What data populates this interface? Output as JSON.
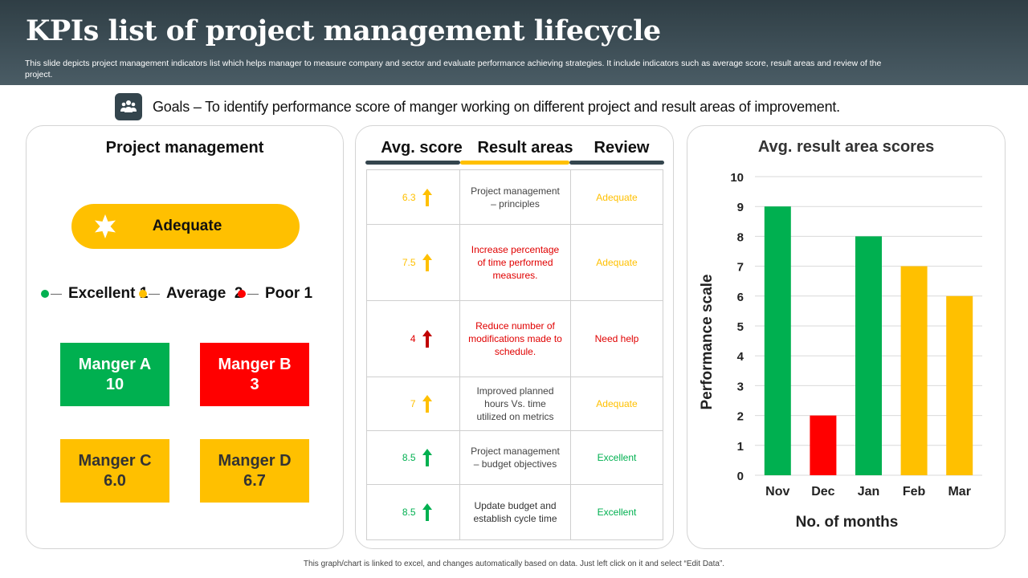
{
  "header": {
    "title": "KPIs list of project management lifecycle",
    "description": "This slide depicts project management indicators list which helps manager to measure company and sector and evaluate performance achieving strategies. It include indicators such as average score, result areas and review of the project."
  },
  "goals": {
    "icon": "people-icon",
    "text": "Goals – To identify performance score of manger working on different project and result areas of improvement."
  },
  "project_panel": {
    "title": "Project management",
    "status": {
      "label": "Adequate",
      "icon": "star-icon",
      "color": "#ffc000"
    },
    "legend": [
      {
        "label": "Excellent 1",
        "color": "#00b050"
      },
      {
        "label": "Average  2",
        "color": "#ffc000"
      },
      {
        "label": "Poor 1",
        "color": "#ff0000"
      }
    ],
    "managers": [
      {
        "name": "Manger A",
        "score": "10",
        "color": "#00b050",
        "text_color": "#ffffff"
      },
      {
        "name": "Manger B",
        "score": "3",
        "color": "#ff0000",
        "text_color": "#ffffff"
      },
      {
        "name": "Manger C",
        "score": "6.0",
        "color": "#ffc000",
        "text_color": "#333333"
      },
      {
        "name": "Manger D",
        "score": "6.7",
        "color": "#ffc000",
        "text_color": "#333333"
      }
    ]
  },
  "kpi_table": {
    "headers": [
      {
        "label": "Avg. score",
        "bar_color": "#34454d"
      },
      {
        "label": "Result areas",
        "bar_color": "#ffc000"
      },
      {
        "label": "Review",
        "bar_color": "#34454d"
      }
    ],
    "rows": [
      {
        "score": "6.3",
        "arrow_color": "#ffc000",
        "area": "Project management – principles",
        "area_color": "#444444",
        "review": "Adequate",
        "color": "#ffc000"
      },
      {
        "score": "7.5",
        "arrow_color": "#ffc000",
        "area": "Increase percentage of time performed measures.",
        "area_color": "#e00000",
        "review": "Adequate",
        "color": "#ffc000"
      },
      {
        "score": "4",
        "arrow_color": "#c00000",
        "area": "Reduce number of modifications made to schedule.",
        "area_color": "#e00000",
        "review": "Need help",
        "color": "#e00000"
      },
      {
        "score": "7",
        "arrow_color": "#ffc000",
        "area": "Improved planned hours Vs. time utilized on metrics",
        "area_color": "#444444",
        "review": "Adequate",
        "color": "#ffc000"
      },
      {
        "score": "8.5",
        "arrow_color": "#00b050",
        "area": "Project management – budget objectives",
        "area_color": "#444444",
        "review": "Excellent",
        "color": "#00b050"
      },
      {
        "score": "8.5",
        "arrow_color": "#00b050",
        "area": "Update budget and establish cycle time",
        "area_color": "#333333",
        "review": "Excellent",
        "color": "#00b050"
      }
    ]
  },
  "chart_data": {
    "type": "bar",
    "title": "Avg. result area scores",
    "xlabel": "No. of months",
    "ylabel": "Performance scale",
    "categories": [
      "Nov",
      "Dec",
      "Jan",
      "Feb",
      "Mar"
    ],
    "values": [
      9,
      2,
      8,
      7,
      6
    ],
    "colors": [
      "#00b050",
      "#ff0000",
      "#00b050",
      "#ffc000",
      "#ffc000"
    ],
    "ylim": [
      0,
      10
    ],
    "yticks": [
      0,
      1,
      2,
      3,
      4,
      5,
      6,
      7,
      8,
      9,
      10
    ],
    "grid": true
  },
  "footnote": "This graph/chart is linked to excel, and changes automatically based on data. Just left click on it and select “Edit Data”."
}
